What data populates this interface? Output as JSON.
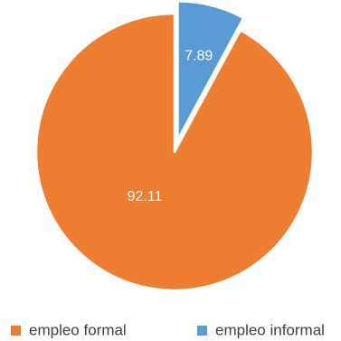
{
  "chart_data": {
    "type": "pie",
    "title": "",
    "categories": [
      "empleo formal",
      "empleo informal"
    ],
    "values": [
      92.11,
      7.89
    ],
    "value_labels": [
      "92.11",
      "7.89"
    ],
    "colors": [
      "#ED7D31",
      "#5B9BD5"
    ],
    "exploded_slice": "empleo informal",
    "legend_position": "bottom"
  }
}
